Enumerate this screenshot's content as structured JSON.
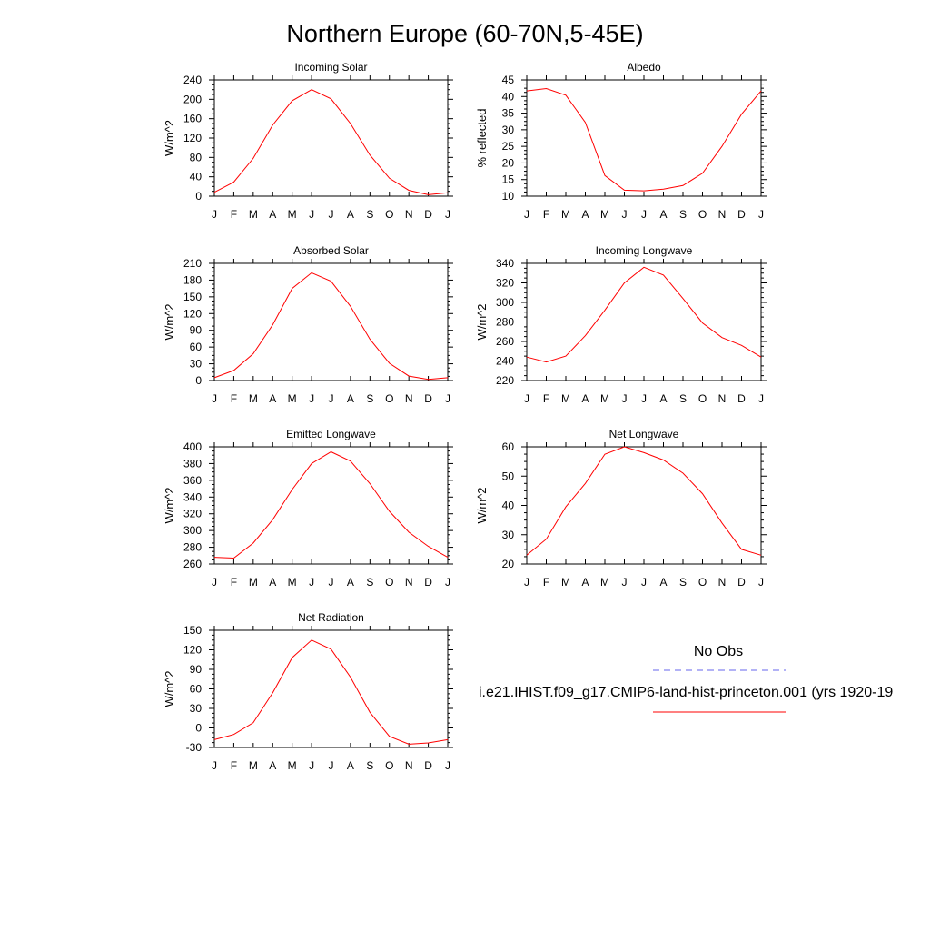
{
  "title": "Northern Europe (60-70N,5-45E)",
  "colors": {
    "model": "#ff0000",
    "obs": "#6666ee",
    "axis": "#000000"
  },
  "legend": {
    "obs_label": "No Obs",
    "model_label": "i.e21.IHIST.f09_g17.CMIP6-land-hist-princeton.001 (yrs 1920-19"
  },
  "chart_data": [
    {
      "type": "line",
      "title": "Incoming Solar",
      "xlabel": "",
      "ylabel": "W/m^2",
      "categories": [
        "J",
        "F",
        "M",
        "A",
        "M",
        "J",
        "J",
        "A",
        "S",
        "O",
        "N",
        "D",
        "J"
      ],
      "ylim": [
        0,
        240
      ],
      "yticks": [
        0,
        40,
        80,
        120,
        160,
        200,
        240
      ],
      "series": [
        {
          "values": [
            8,
            29,
            78,
            147,
            197,
            220,
            201,
            150,
            85,
            37,
            12,
            3,
            7
          ]
        }
      ]
    },
    {
      "type": "line",
      "title": "Albedo",
      "xlabel": "",
      "ylabel": "% reflected",
      "categories": [
        "J",
        "F",
        "M",
        "A",
        "M",
        "J",
        "J",
        "A",
        "S",
        "O",
        "N",
        "D",
        "J"
      ],
      "ylim": [
        10,
        45
      ],
      "yticks": [
        10,
        15,
        20,
        25,
        30,
        35,
        40,
        45
      ],
      "series": [
        {
          "values": [
            41.7,
            42.4,
            40.4,
            32.2,
            16.2,
            11.8,
            11.6,
            12.1,
            13.2,
            16.9,
            25.0,
            34.7,
            41.7
          ]
        }
      ]
    },
    {
      "type": "line",
      "title": "Absorbed Solar",
      "xlabel": "",
      "ylabel": "W/m^2",
      "categories": [
        "J",
        "F",
        "M",
        "A",
        "M",
        "J",
        "J",
        "A",
        "S",
        "O",
        "N",
        "D",
        "J"
      ],
      "ylim": [
        0,
        210
      ],
      "yticks": [
        0,
        30,
        60,
        90,
        120,
        150,
        180,
        210
      ],
      "series": [
        {
          "values": [
            5,
            18,
            48,
            100,
            165,
            193,
            178,
            133,
            74,
            31,
            8,
            2,
            5
          ]
        }
      ]
    },
    {
      "type": "line",
      "title": "Incoming Longwave",
      "xlabel": "",
      "ylabel": "W/m^2",
      "categories": [
        "J",
        "F",
        "M",
        "A",
        "M",
        "J",
        "J",
        "A",
        "S",
        "O",
        "N",
        "D",
        "J"
      ],
      "ylim": [
        220,
        340
      ],
      "yticks": [
        220,
        240,
        260,
        280,
        300,
        320,
        340
      ],
      "series": [
        {
          "values": [
            244,
            239,
            245,
            266,
            292,
            320,
            336,
            328,
            304,
            279,
            264,
            256,
            244
          ]
        }
      ]
    },
    {
      "type": "line",
      "title": "Emitted Longwave",
      "xlabel": "",
      "ylabel": "W/m^2",
      "categories": [
        "J",
        "F",
        "M",
        "A",
        "M",
        "J",
        "J",
        "A",
        "S",
        "O",
        "N",
        "D",
        "J"
      ],
      "ylim": [
        260,
        400
      ],
      "yticks": [
        260,
        280,
        300,
        320,
        340,
        360,
        380,
        400
      ],
      "series": [
        {
          "values": [
            268,
            267,
            285,
            313,
            349,
            380,
            394,
            383,
            356,
            323,
            298,
            281,
            268
          ]
        }
      ]
    },
    {
      "type": "line",
      "title": "Net Longwave",
      "xlabel": "",
      "ylabel": "W/m^2",
      "categories": [
        "J",
        "F",
        "M",
        "A",
        "M",
        "J",
        "J",
        "A",
        "S",
        "O",
        "N",
        "D",
        "J"
      ],
      "ylim": [
        20,
        60
      ],
      "yticks": [
        20,
        30,
        40,
        50,
        60
      ],
      "series": [
        {
          "values": [
            23,
            28.5,
            39.5,
            47.5,
            57.5,
            60,
            58,
            55.5,
            51,
            44,
            34,
            25,
            23
          ]
        }
      ]
    },
    {
      "type": "line",
      "title": "Net Radiation",
      "xlabel": "",
      "ylabel": "W/m^2",
      "categories": [
        "J",
        "F",
        "M",
        "A",
        "M",
        "J",
        "J",
        "A",
        "S",
        "O",
        "N",
        "D",
        "J"
      ],
      "ylim": [
        -30,
        150
      ],
      "yticks": [
        -30,
        0,
        30,
        60,
        90,
        120,
        150
      ],
      "series": [
        {
          "values": [
            -18,
            -10,
            8,
            54,
            108,
            135,
            121,
            78,
            24,
            -13,
            -25,
            -23,
            -18
          ]
        }
      ]
    }
  ]
}
